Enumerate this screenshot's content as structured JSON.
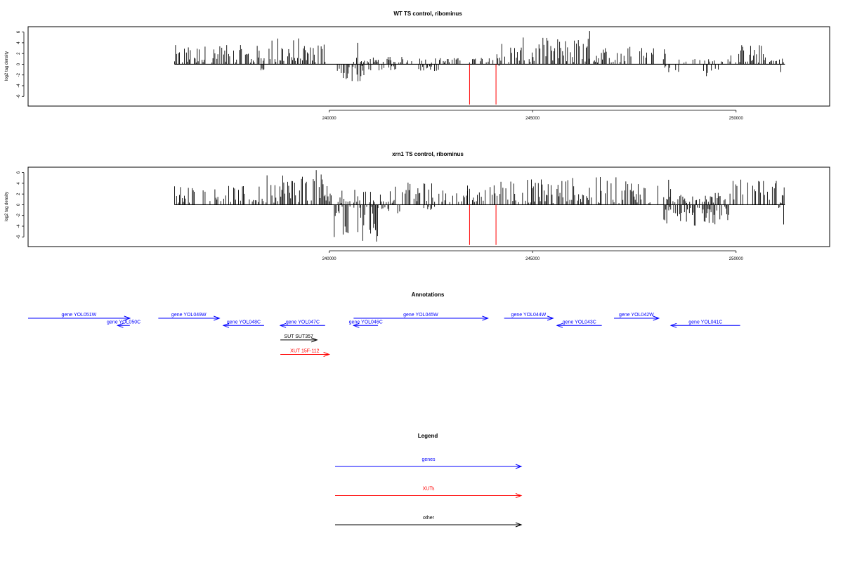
{
  "chart_data": [
    {
      "type": "bar",
      "title": "WT TS control, ribominus",
      "xlabel": "",
      "ylabel": "log2 tag density",
      "xlim": [
        232600,
        252300
      ],
      "ylim": [
        -7.8,
        7.0
      ],
      "x_ticks": [
        240000,
        245000,
        250000
      ],
      "y_ticks": [
        -6,
        -4,
        -2,
        0,
        2,
        4,
        6
      ],
      "grid": false,
      "x_start": 236200,
      "x_end": 251200,
      "baseline": 0,
      "positive_regions": [
        {
          "x": [
            236200,
            238400
          ],
          "max": 3.6
        },
        {
          "x": [
            238400,
            240000
          ],
          "max": 5.0
        },
        {
          "x": [
            240600,
            242200
          ],
          "max": 1.4
        },
        {
          "x": [
            242200,
            243400
          ],
          "max": 1.2
        },
        {
          "x": [
            243400,
            244000
          ],
          "max": 1.6
        },
        {
          "x": [
            244000,
            244600
          ],
          "max": 4.4
        },
        {
          "x": [
            244600,
            246400
          ],
          "max": 5.0
        },
        {
          "x": [
            246400,
            248400
          ],
          "max": 3.6
        },
        {
          "x": [
            248600,
            249800
          ],
          "max": 1.0
        },
        {
          "x": [
            249800,
            250800
          ],
          "max": 3.8
        },
        {
          "x": [
            250800,
            251200
          ],
          "max": 1.2
        }
      ],
      "negative_regions": [
        {
          "x": [
            238300,
            238400
          ],
          "min": -2.0
        },
        {
          "x": [
            240200,
            241100
          ],
          "min": -3.6
        },
        {
          "x": [
            241200,
            241700
          ],
          "min": -1.2
        },
        {
          "x": [
            242200,
            242700
          ],
          "min": -1.4
        },
        {
          "x": [
            244100,
            244200
          ],
          "min": -2.4
        },
        {
          "x": [
            248200,
            248600
          ],
          "min": -1.6
        },
        {
          "x": [
            249200,
            249600
          ],
          "min": -2.4
        },
        {
          "x": [
            251100,
            251200
          ],
          "min": -2.0
        }
      ],
      "spikes": [
        {
          "x": 246400,
          "y": 6.2
        },
        {
          "x": 240700,
          "y": 4.0
        }
      ],
      "red_markers": [
        {
          "x": 243450,
          "y": -7.5
        },
        {
          "x": 244100,
          "y": -7.5
        }
      ]
    },
    {
      "type": "bar",
      "title": "xrn1 TS control, ribominus",
      "xlabel": "",
      "ylabel": "log2 tag density",
      "xlim": [
        232600,
        252300
      ],
      "ylim": [
        -7.8,
        7.0
      ],
      "x_ticks": [
        240000,
        245000,
        250000
      ],
      "y_ticks": [
        -6,
        -4,
        -2,
        0,
        2,
        4,
        6
      ],
      "grid": false,
      "x_start": 236200,
      "x_end": 251200,
      "baseline": 0,
      "positive_regions": [
        {
          "x": [
            236200,
            238400
          ],
          "max": 3.6
        },
        {
          "x": [
            238400,
            240000
          ],
          "max": 6.6
        },
        {
          "x": [
            240000,
            241600
          ],
          "max": 3.0
        },
        {
          "x": [
            241600,
            242600
          ],
          "max": 4.2
        },
        {
          "x": [
            242600,
            243400
          ],
          "max": 2.8
        },
        {
          "x": [
            243400,
            244100
          ],
          "max": 4.0
        },
        {
          "x": [
            244100,
            247400
          ],
          "max": 5.2
        },
        {
          "x": [
            247400,
            248400
          ],
          "max": 4.8
        },
        {
          "x": [
            248400,
            249900
          ],
          "max": 2.4
        },
        {
          "x": [
            249900,
            251200
          ],
          "max": 4.8
        }
      ],
      "negative_regions": [
        {
          "x": [
            240100,
            241200
          ],
          "min": -7.2
        },
        {
          "x": [
            241200,
            241800
          ],
          "min": -1.6
        },
        {
          "x": [
            242300,
            242600
          ],
          "min": -1.0
        },
        {
          "x": [
            248200,
            249900
          ],
          "min": -4.0
        },
        {
          "x": [
            251000,
            251200
          ],
          "min": -4.0
        }
      ],
      "spikes": [],
      "red_markers": [
        {
          "x": 243450,
          "y": -7.5
        },
        {
          "x": 244100,
          "y": -7.5
        }
      ]
    }
  ],
  "annotations": {
    "title": "Annotations",
    "items": [
      {
        "label": "gene YOL051W",
        "category": "genes",
        "strand": "+",
        "start": 232600,
        "end": 235100,
        "row": 0
      },
      {
        "label": "gene YOL050C",
        "category": "genes",
        "strand": "-",
        "start": 234800,
        "end": 235100,
        "row": 1
      },
      {
        "label": "gene YOL049W",
        "category": "genes",
        "strand": "+",
        "start": 235800,
        "end": 237300,
        "row": 0
      },
      {
        "label": "gene YOL048C",
        "category": "genes",
        "strand": "-",
        "start": 237400,
        "end": 238400,
        "row": 1
      },
      {
        "label": "gene YOL047C",
        "category": "genes",
        "strand": "-",
        "start": 238800,
        "end": 239900,
        "row": 1
      },
      {
        "label": "gene YOL046C",
        "category": "genes",
        "strand": "-",
        "start": 240600,
        "end": 241200,
        "row": 1
      },
      {
        "label": "gene YOL045W",
        "category": "genes",
        "strand": "+",
        "start": 240600,
        "end": 243900,
        "row": 0
      },
      {
        "label": "gene YOL044W",
        "category": "genes",
        "strand": "+",
        "start": 244300,
        "end": 245500,
        "row": 0
      },
      {
        "label": "gene YOL043C",
        "category": "genes",
        "strand": "-",
        "start": 245600,
        "end": 246700,
        "row": 1
      },
      {
        "label": "gene YOL042W",
        "category": "genes",
        "strand": "+",
        "start": 247000,
        "end": 248100,
        "row": 0
      },
      {
        "label": "gene YOL041C",
        "category": "genes",
        "strand": "-",
        "start": 248400,
        "end": 250100,
        "row": 1
      },
      {
        "label": "SUT SUT357",
        "category": "other",
        "strand": "+",
        "start": 238800,
        "end": 239700,
        "row": 3
      },
      {
        "label": "XUT 15F-112",
        "category": "XUTs",
        "strand": "+",
        "start": 238800,
        "end": 240000,
        "row": 5
      }
    ]
  },
  "legend": {
    "title": "Legend",
    "items": [
      {
        "label": "genes",
        "color": "#0000ff"
      },
      {
        "label": "XUTs",
        "color": "#ff0000"
      },
      {
        "label": "other",
        "color": "#000000"
      }
    ]
  },
  "colors": {
    "genes": "#0000ff",
    "XUTs": "#ff0000",
    "other": "#000000",
    "signal": "#000000",
    "marker": "#ff0000"
  }
}
